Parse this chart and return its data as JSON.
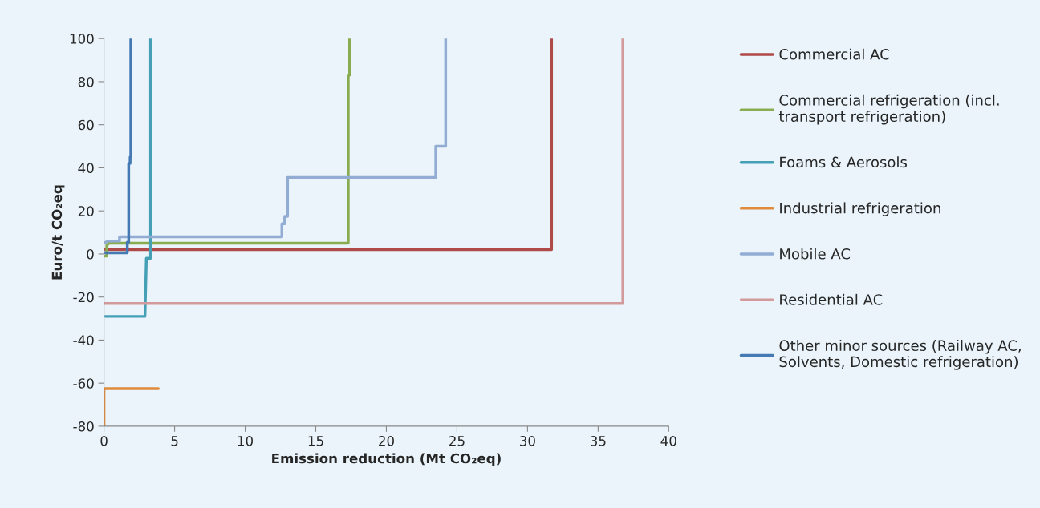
{
  "chart_data": {
    "type": "line",
    "xlabel": "Emission reduction (Mt CO₂eq)",
    "ylabel": "Euro/t CO₂eq",
    "xlim": [
      0,
      40
    ],
    "xticks": [
      0,
      5,
      10,
      15,
      20,
      25,
      30,
      35,
      40
    ],
    "ylim": [
      -80,
      100
    ],
    "yticks": [
      -80,
      -60,
      -40,
      -20,
      0,
      20,
      40,
      60,
      80,
      100
    ],
    "grid": false,
    "legend": "right",
    "marker": "none",
    "line_style": "solid",
    "series": [
      {
        "name": "Commercial AC",
        "color": "#b04a48",
        "x": [
          0,
          31.7,
          31.7
        ],
        "values": [
          2,
          2,
          100
        ]
      },
      {
        "name": "Commercial refrigeration (incl.\ntransport refrigeration)",
        "color": "#8aac50",
        "x": [
          0,
          0.2,
          0.2,
          0.35,
          17.3,
          17.3,
          17.4,
          17.4
        ],
        "values": [
          -1,
          -1,
          4,
          5,
          5,
          83,
          83,
          100
        ]
      },
      {
        "name": "Foams & Aerosols",
        "color": "#45a0b6",
        "x": [
          0.1,
          2.9,
          3.0,
          3.3,
          3.3
        ],
        "values": [
          -29,
          -29,
          -2,
          -2,
          100
        ]
      },
      {
        "name": "Industrial refrigeration",
        "color": "#e08a3c",
        "x": [
          0,
          0,
          3.85
        ],
        "values": [
          -80,
          -62.5,
          -62.5
        ]
      },
      {
        "name": "Mobile AC",
        "color": "#92acd4",
        "x": [
          0,
          0.3,
          1.1,
          1.1,
          12.6,
          12.6,
          12.8,
          12.8,
          13,
          13,
          23.5,
          23.5,
          24.2,
          24.2
        ],
        "values": [
          5,
          6,
          6,
          8,
          8,
          14,
          14,
          17.5,
          17.5,
          35.5,
          35.5,
          50,
          50,
          100
        ]
      },
      {
        "name": "Residential AC",
        "color": "#d39a9c",
        "x": [
          0,
          36.75,
          36.75
        ],
        "values": [
          -23,
          -23,
          100
        ]
      },
      {
        "name": "Other minor sources (Railway AC,\nSolvents, Domestic refrigeration)",
        "color": "#4479b4",
        "x": [
          0,
          1.65,
          1.65,
          1.75,
          1.75,
          1.85,
          1.85,
          1.9,
          1.9
        ],
        "values": [
          0.5,
          0.5,
          5.5,
          5.5,
          42,
          42,
          45,
          45,
          100
        ]
      }
    ]
  }
}
